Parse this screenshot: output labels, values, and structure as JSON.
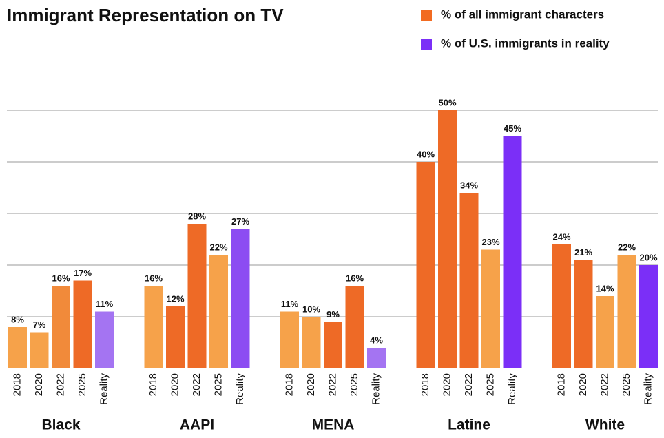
{
  "chart_data": {
    "type": "grouped-bar",
    "title": "Immigrant Representation on TV",
    "legend": [
      {
        "name": "% of all immigrant characters",
        "color": "#f26b21"
      },
      {
        "name": "% of U.S. immigrants in reality",
        "color": "#7b2ff7"
      }
    ],
    "ylim": [
      0,
      50
    ],
    "yticks": [
      10,
      20,
      30,
      40,
      50
    ],
    "grid": true,
    "groups": [
      {
        "name": "Black",
        "labels": [
          "2018",
          "2020",
          "2022",
          "2025",
          "Reality"
        ],
        "values": [
          8,
          7,
          16,
          17,
          11
        ],
        "value_labels": [
          "8%",
          "7%",
          "16%",
          "17%",
          "11%"
        ],
        "colors": [
          "#f6a24a",
          "#f6a24a",
          "#f18a3a",
          "#ee6a26",
          "#a474f2"
        ]
      },
      {
        "name": "AAPI",
        "labels": [
          "2018",
          "2020",
          "2022",
          "2025",
          "Reality"
        ],
        "values": [
          16,
          12,
          28,
          22,
          27
        ],
        "value_labels": [
          "16%",
          "12%",
          "28%",
          "22%",
          "27%"
        ],
        "colors": [
          "#f6a24a",
          "#ee6a26",
          "#ee6a26",
          "#f6a24a",
          "#8c4cf2"
        ]
      },
      {
        "name": "MENA",
        "labels": [
          "2018",
          "2020",
          "2022",
          "2025",
          "Reality"
        ],
        "values": [
          11,
          10,
          9,
          16,
          4
        ],
        "value_labels": [
          "11%",
          "10%",
          "9%",
          "16%",
          "4%"
        ],
        "colors": [
          "#f6a24a",
          "#f6a24a",
          "#ee6a26",
          "#ee6a26",
          "#a474f2"
        ]
      },
      {
        "name": "Latine",
        "labels": [
          "2018",
          "2020",
          "2022",
          "2025",
          "Reality"
        ],
        "values": [
          40,
          50,
          34,
          23,
          45
        ],
        "value_labels": [
          "40%",
          "50%",
          "34%",
          "23%",
          "45%"
        ],
        "colors": [
          "#ee6a26",
          "#ee6a26",
          "#ee6a26",
          "#f6a24a",
          "#7b2ff7"
        ]
      },
      {
        "name": "White",
        "labels": [
          "2018",
          "2020",
          "2022",
          "2025",
          "Reality"
        ],
        "values": [
          24,
          21,
          14,
          22,
          20
        ],
        "value_labels": [
          "24%",
          "21%",
          "14%",
          "22%",
          "20%"
        ],
        "colors": [
          "#ee6a26",
          "#ee6a26",
          "#f6a24a",
          "#f6a24a",
          "#7b2ff7"
        ]
      }
    ]
  }
}
